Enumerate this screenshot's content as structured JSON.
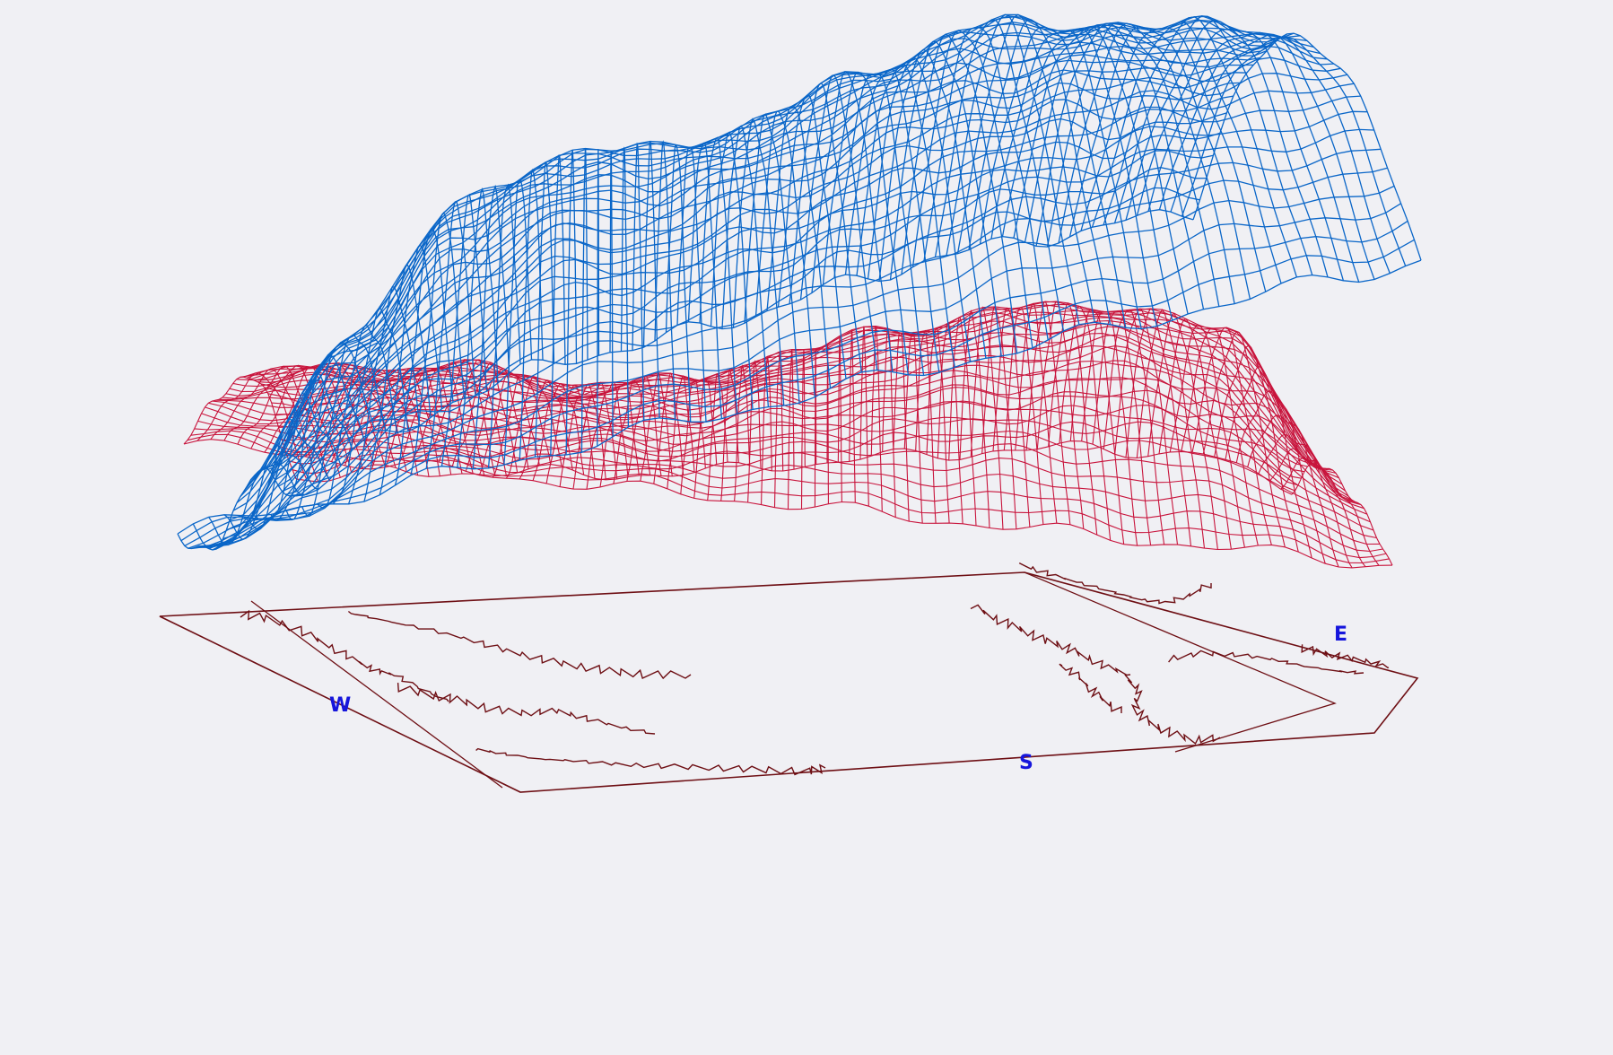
{
  "chart_data": {
    "type": "surface-3d",
    "title": "",
    "series": [
      {
        "style": "wireframe",
        "color": "#0a66c8",
        "ridge_profile": [
          0.1,
          0.45,
          0.7,
          0.78,
          0.72,
          0.74,
          0.8,
          0.84,
          0.78,
          0.7,
          0.62
        ],
        "valley_depth": [
          0.55,
          0.85,
          0.75,
          0.45,
          0.35,
          0.3,
          0.25,
          0.2,
          0.1,
          0.05,
          0.05
        ]
      },
      {
        "style": "wireframe",
        "color": "#c8143c",
        "ridge_profile": [
          0.35,
          0.4,
          0.42,
          0.38,
          0.4,
          0.52,
          0.62,
          0.7,
          0.74,
          0.66,
          0.2
        ],
        "valley_depth": [
          0.2,
          0.25,
          0.3,
          0.2,
          0.15,
          0.2,
          0.25,
          0.3,
          0.35,
          0.4,
          0.15
        ]
      }
    ],
    "base_map": {
      "color": "#6e0f14",
      "compass": {
        "west": "W",
        "south": "S",
        "east": "E"
      },
      "compass_color": "#1616dc"
    }
  }
}
